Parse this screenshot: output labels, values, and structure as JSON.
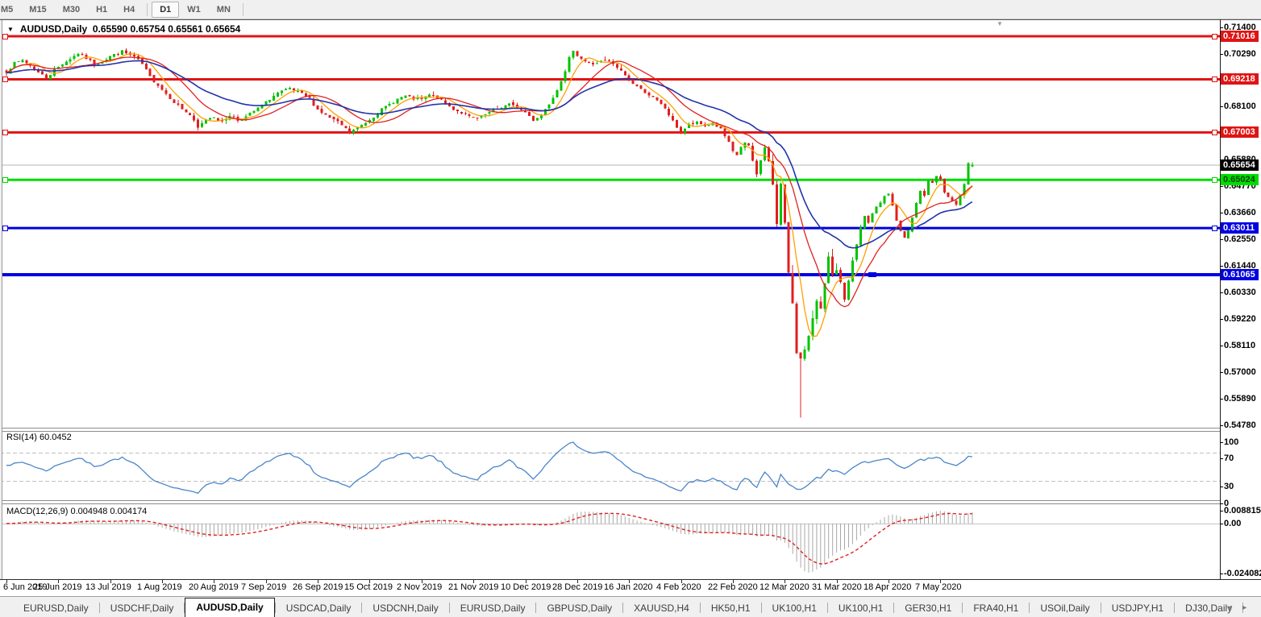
{
  "toolbar": {
    "timeframes": [
      "M5",
      "M15",
      "M30",
      "H1",
      "H4",
      "D1",
      "W1",
      "MN"
    ],
    "active": "D1"
  },
  "chart": {
    "title": {
      "symbol": "AUDUSD,Daily",
      "ohlc": "0.65590 0.65754 0.65561 0.65654"
    }
  },
  "panels": {
    "rsi": {
      "label": "RSI(14)",
      "value": "60.0452",
      "axis_labels": [
        "100",
        "70",
        "30",
        "0"
      ]
    },
    "macd": {
      "label": "MACD(12,26,9)",
      "values": "0.004948 0.004174",
      "axis_labels": [
        "0.008815",
        "0.00",
        "-0.024082"
      ]
    }
  },
  "tabs": {
    "items": [
      "EURUSD,Daily",
      "USDCHF,Daily",
      "AUDUSD,Daily",
      "USDCAD,Daily",
      "USDCNH,Daily",
      "EURUSD,Daily",
      "GBPUSD,Daily",
      "XAUUSD,H4",
      "HK50,H1",
      "UK100,H1",
      "UK100,H1",
      "GER30,H1",
      "FRA40,H1",
      "USOil,Daily",
      "USDJPY,H1",
      "DJ30,Daily"
    ],
    "active_index": 2,
    "scroll_left_icon": "◄",
    "scroll_right_icon": "►"
  },
  "colors": {
    "bull": "#00c300",
    "bear": "#e01f1f",
    "ma_fast": "#ffa000",
    "ma_mid": "#e02020",
    "ma_slow": "#2233aa",
    "resistance": "#e01414",
    "support_green": "#00dd00",
    "support_blue": "#0000e0",
    "current_line": "#b4b4b4",
    "rsi_line": "#4a86c8",
    "macd_hist": "#a8a8a8",
    "macd_signal": "#e02020",
    "level_dash": "#c0c0c0"
  },
  "chart_data": {
    "type": "candlestick",
    "symbol": "AUDUSD",
    "period": "Daily",
    "ohlc_current": {
      "open": 0.6559,
      "high": 0.65754,
      "low": 0.65561,
      "close": 0.65654
    },
    "ylim": [
      0.5468,
      0.7172
    ],
    "bar_count": 243,
    "bars_per_label": 13,
    "noise_seed": 7,
    "x_labels": [
      "6 Jun 2019",
      "25 Jun 2019",
      "13 Jul 2019",
      "1 Aug 2019",
      "20 Aug 2019",
      "7 Sep 2019",
      "26 Sep 2019",
      "15 Oct 2019",
      "2 Nov 2019",
      "21 Nov 2019",
      "10 Dec 2019",
      "28 Dec 2019",
      "16 Jan 2020",
      "4 Feb 2020",
      "22 Feb 2020",
      "12 Mar 2020",
      "31 Mar 2020",
      "18 Apr 2020",
      "7 May 2020"
    ],
    "price_axis_ticks": [
      "0.71400",
      "0.70290",
      "0.68100",
      "0.65880",
      "0.64770",
      "0.63660",
      "0.62550",
      "0.61440",
      "0.60330",
      "0.59220",
      "0.58110",
      "0.57000",
      "0.55890",
      "0.54780"
    ],
    "close_anchors": [
      [
        0,
        0.6955
      ],
      [
        2,
        0.6988
      ],
      [
        4,
        0.7002
      ],
      [
        6,
        0.698
      ],
      [
        8,
        0.695
      ],
      [
        10,
        0.6928
      ],
      [
        12,
        0.696
      ],
      [
        14,
        0.6988
      ],
      [
        16,
        0.7008
      ],
      [
        18,
        0.703
      ],
      [
        20,
        0.701
      ],
      [
        22,
        0.6986
      ],
      [
        24,
        0.6995
      ],
      [
        26,
        0.7018
      ],
      [
        29,
        0.7038
      ],
      [
        32,
        0.7015
      ],
      [
        34,
        0.6985
      ],
      [
        36,
        0.6932
      ],
      [
        38,
        0.6898
      ],
      [
        40,
        0.6862
      ],
      [
        42,
        0.6828
      ],
      [
        44,
        0.6798
      ],
      [
        46,
        0.6772
      ],
      [
        48,
        0.6718
      ],
      [
        50,
        0.6755
      ],
      [
        52,
        0.6768
      ],
      [
        54,
        0.6742
      ],
      [
        56,
        0.6773
      ],
      [
        58,
        0.675
      ],
      [
        60,
        0.6765
      ],
      [
        62,
        0.6788
      ],
      [
        64,
        0.6812
      ],
      [
        66,
        0.684
      ],
      [
        68,
        0.6865
      ],
      [
        71,
        0.6882
      ],
      [
        74,
        0.686
      ],
      [
        76,
        0.684
      ],
      [
        78,
        0.6795
      ],
      [
        80,
        0.6772
      ],
      [
        82,
        0.6752
      ],
      [
        84,
        0.673
      ],
      [
        86,
        0.67
      ],
      [
        88,
        0.672
      ],
      [
        90,
        0.6742
      ],
      [
        92,
        0.6768
      ],
      [
        94,
        0.6795
      ],
      [
        96,
        0.6818
      ],
      [
        98,
        0.684
      ],
      [
        100,
        0.6852
      ],
      [
        102,
        0.684
      ],
      [
        104,
        0.6838
      ],
      [
        106,
        0.6856
      ],
      [
        108,
        0.6846
      ],
      [
        110,
        0.682
      ],
      [
        112,
        0.6798
      ],
      [
        114,
        0.6782
      ],
      [
        116,
        0.6764
      ],
      [
        118,
        0.6756
      ],
      [
        120,
        0.6775
      ],
      [
        122,
        0.679
      ],
      [
        124,
        0.6805
      ],
      [
        126,
        0.6818
      ],
      [
        128,
        0.6802
      ],
      [
        130,
        0.6785
      ],
      [
        132,
        0.6752
      ],
      [
        134,
        0.6775
      ],
      [
        136,
        0.682
      ],
      [
        138,
        0.688
      ],
      [
        140,
        0.696
      ],
      [
        141,
        0.701
      ],
      [
        142,
        0.7035
      ],
      [
        143,
        0.7025
      ],
      [
        145,
        0.6998
      ],
      [
        147,
        0.6982
      ],
      [
        149,
        0.7
      ],
      [
        151,
        0.6995
      ],
      [
        153,
        0.697
      ],
      [
        155,
        0.694
      ],
      [
        157,
        0.6905
      ],
      [
        159,
        0.688
      ],
      [
        161,
        0.6858
      ],
      [
        163,
        0.683
      ],
      [
        165,
        0.6802
      ],
      [
        167,
        0.6745
      ],
      [
        169,
        0.67
      ],
      [
        171,
        0.6732
      ],
      [
        173,
        0.674
      ],
      [
        175,
        0.6728
      ],
      [
        177,
        0.674
      ],
      [
        179,
        0.6712
      ],
      [
        181,
        0.6655
      ],
      [
        182,
        0.6618
      ],
      [
        183,
        0.6605
      ],
      [
        184,
        0.664
      ],
      [
        185,
        0.6655
      ],
      [
        186,
        0.663
      ],
      [
        187,
        0.658
      ],
      [
        188,
        0.652
      ],
      [
        189,
        0.6596
      ],
      [
        190,
        0.663
      ],
      [
        191,
        0.6585
      ],
      [
        192,
        0.648
      ],
      [
        193,
        0.6305
      ],
      [
        194,
        0.649
      ],
      [
        195,
        0.633
      ],
      [
        196,
        0.613
      ],
      [
        197,
        0.598
      ],
      [
        198,
        0.577
      ],
      [
        199,
        0.5741
      ],
      [
        200,
        0.58
      ],
      [
        201,
        0.586
      ],
      [
        202,
        0.594
      ],
      [
        203,
        0.599
      ],
      [
        204,
        0.595
      ],
      [
        205,
        0.606
      ],
      [
        206,
        0.617
      ],
      [
        207,
        0.609
      ],
      [
        208,
        0.6135
      ],
      [
        209,
        0.606
      ],
      [
        210,
        0.601
      ],
      [
        211,
        0.608
      ],
      [
        212,
        0.617
      ],
      [
        213,
        0.623
      ],
      [
        214,
        0.63
      ],
      [
        215,
        0.635
      ],
      [
        216,
        0.632
      ],
      [
        217,
        0.636
      ],
      [
        218,
        0.639
      ],
      [
        220,
        0.643
      ],
      [
        221,
        0.6445
      ],
      [
        222,
        0.64
      ],
      [
        223,
        0.633
      ],
      [
        224,
        0.629
      ],
      [
        225,
        0.626
      ],
      [
        226,
        0.629
      ],
      [
        227,
        0.634
      ],
      [
        228,
        0.64
      ],
      [
        229,
        0.646
      ],
      [
        230,
        0.644
      ],
      [
        231,
        0.65
      ],
      [
        232,
        0.649
      ],
      [
        233,
        0.652
      ],
      [
        234,
        0.65
      ],
      [
        235,
        0.6445
      ],
      [
        236,
        0.643
      ],
      [
        237,
        0.641
      ],
      [
        238,
        0.6402
      ],
      [
        239,
        0.644
      ],
      [
        240,
        0.648
      ],
      [
        241,
        0.657
      ],
      [
        242,
        0.65654
      ]
    ],
    "overrides": [
      {
        "i": 199,
        "low": 0.551
      },
      {
        "i": 242,
        "open": 0.6559,
        "high": 0.65754,
        "low": 0.65561,
        "close": 0.65654
      }
    ],
    "moving_averages": [
      {
        "period": 6,
        "type": "sma",
        "color_key": "ma_fast"
      },
      {
        "period": 14,
        "type": "sma",
        "color_key": "ma_mid"
      },
      {
        "period": 30,
        "type": "ema",
        "color_key": "ma_slow"
      }
    ],
    "horizontal_lines": [
      {
        "price": 0.71016,
        "label": "0.71016",
        "color_key": "resistance",
        "thickness": 3,
        "text_color": "#ffffff",
        "handles": "both"
      },
      {
        "price": 0.69218,
        "label": "0.69218",
        "color_key": "resistance",
        "thickness": 3,
        "text_color": "#ffffff",
        "handles": "both"
      },
      {
        "price": 0.67003,
        "label": "0.67003",
        "color_key": "resistance",
        "thickness": 3,
        "text_color": "#ffffff",
        "handles": "both"
      },
      {
        "price": 0.65024,
        "label": "0.65024",
        "color_key": "support_green",
        "thickness": 3,
        "text_color": "#004400",
        "handles": "both"
      },
      {
        "price": 0.63011,
        "label": "0.63011",
        "color_key": "support_blue",
        "thickness": 3,
        "text_color": "#ffffff",
        "handles": "both"
      },
      {
        "price": 0.61065,
        "label": "0.61065",
        "color_key": "support_blue",
        "thickness": 4,
        "text_color": "#ffffff",
        "handles": "center"
      }
    ],
    "current_price": {
      "price": 0.65654,
      "label": "0.65654",
      "bg": "#000000",
      "text_color": "#ffffff"
    },
    "indicators": {
      "rsi": {
        "period": 14,
        "levels": [
          70,
          30
        ],
        "range": [
          0,
          100
        ],
        "last_value": 60.0452
      },
      "macd": {
        "fast": 12,
        "slow": 26,
        "signal": 9,
        "axis_max": 0.008815,
        "axis_min": -0.024082,
        "last_main": 0.004948,
        "last_signal": 0.004174
      }
    }
  }
}
